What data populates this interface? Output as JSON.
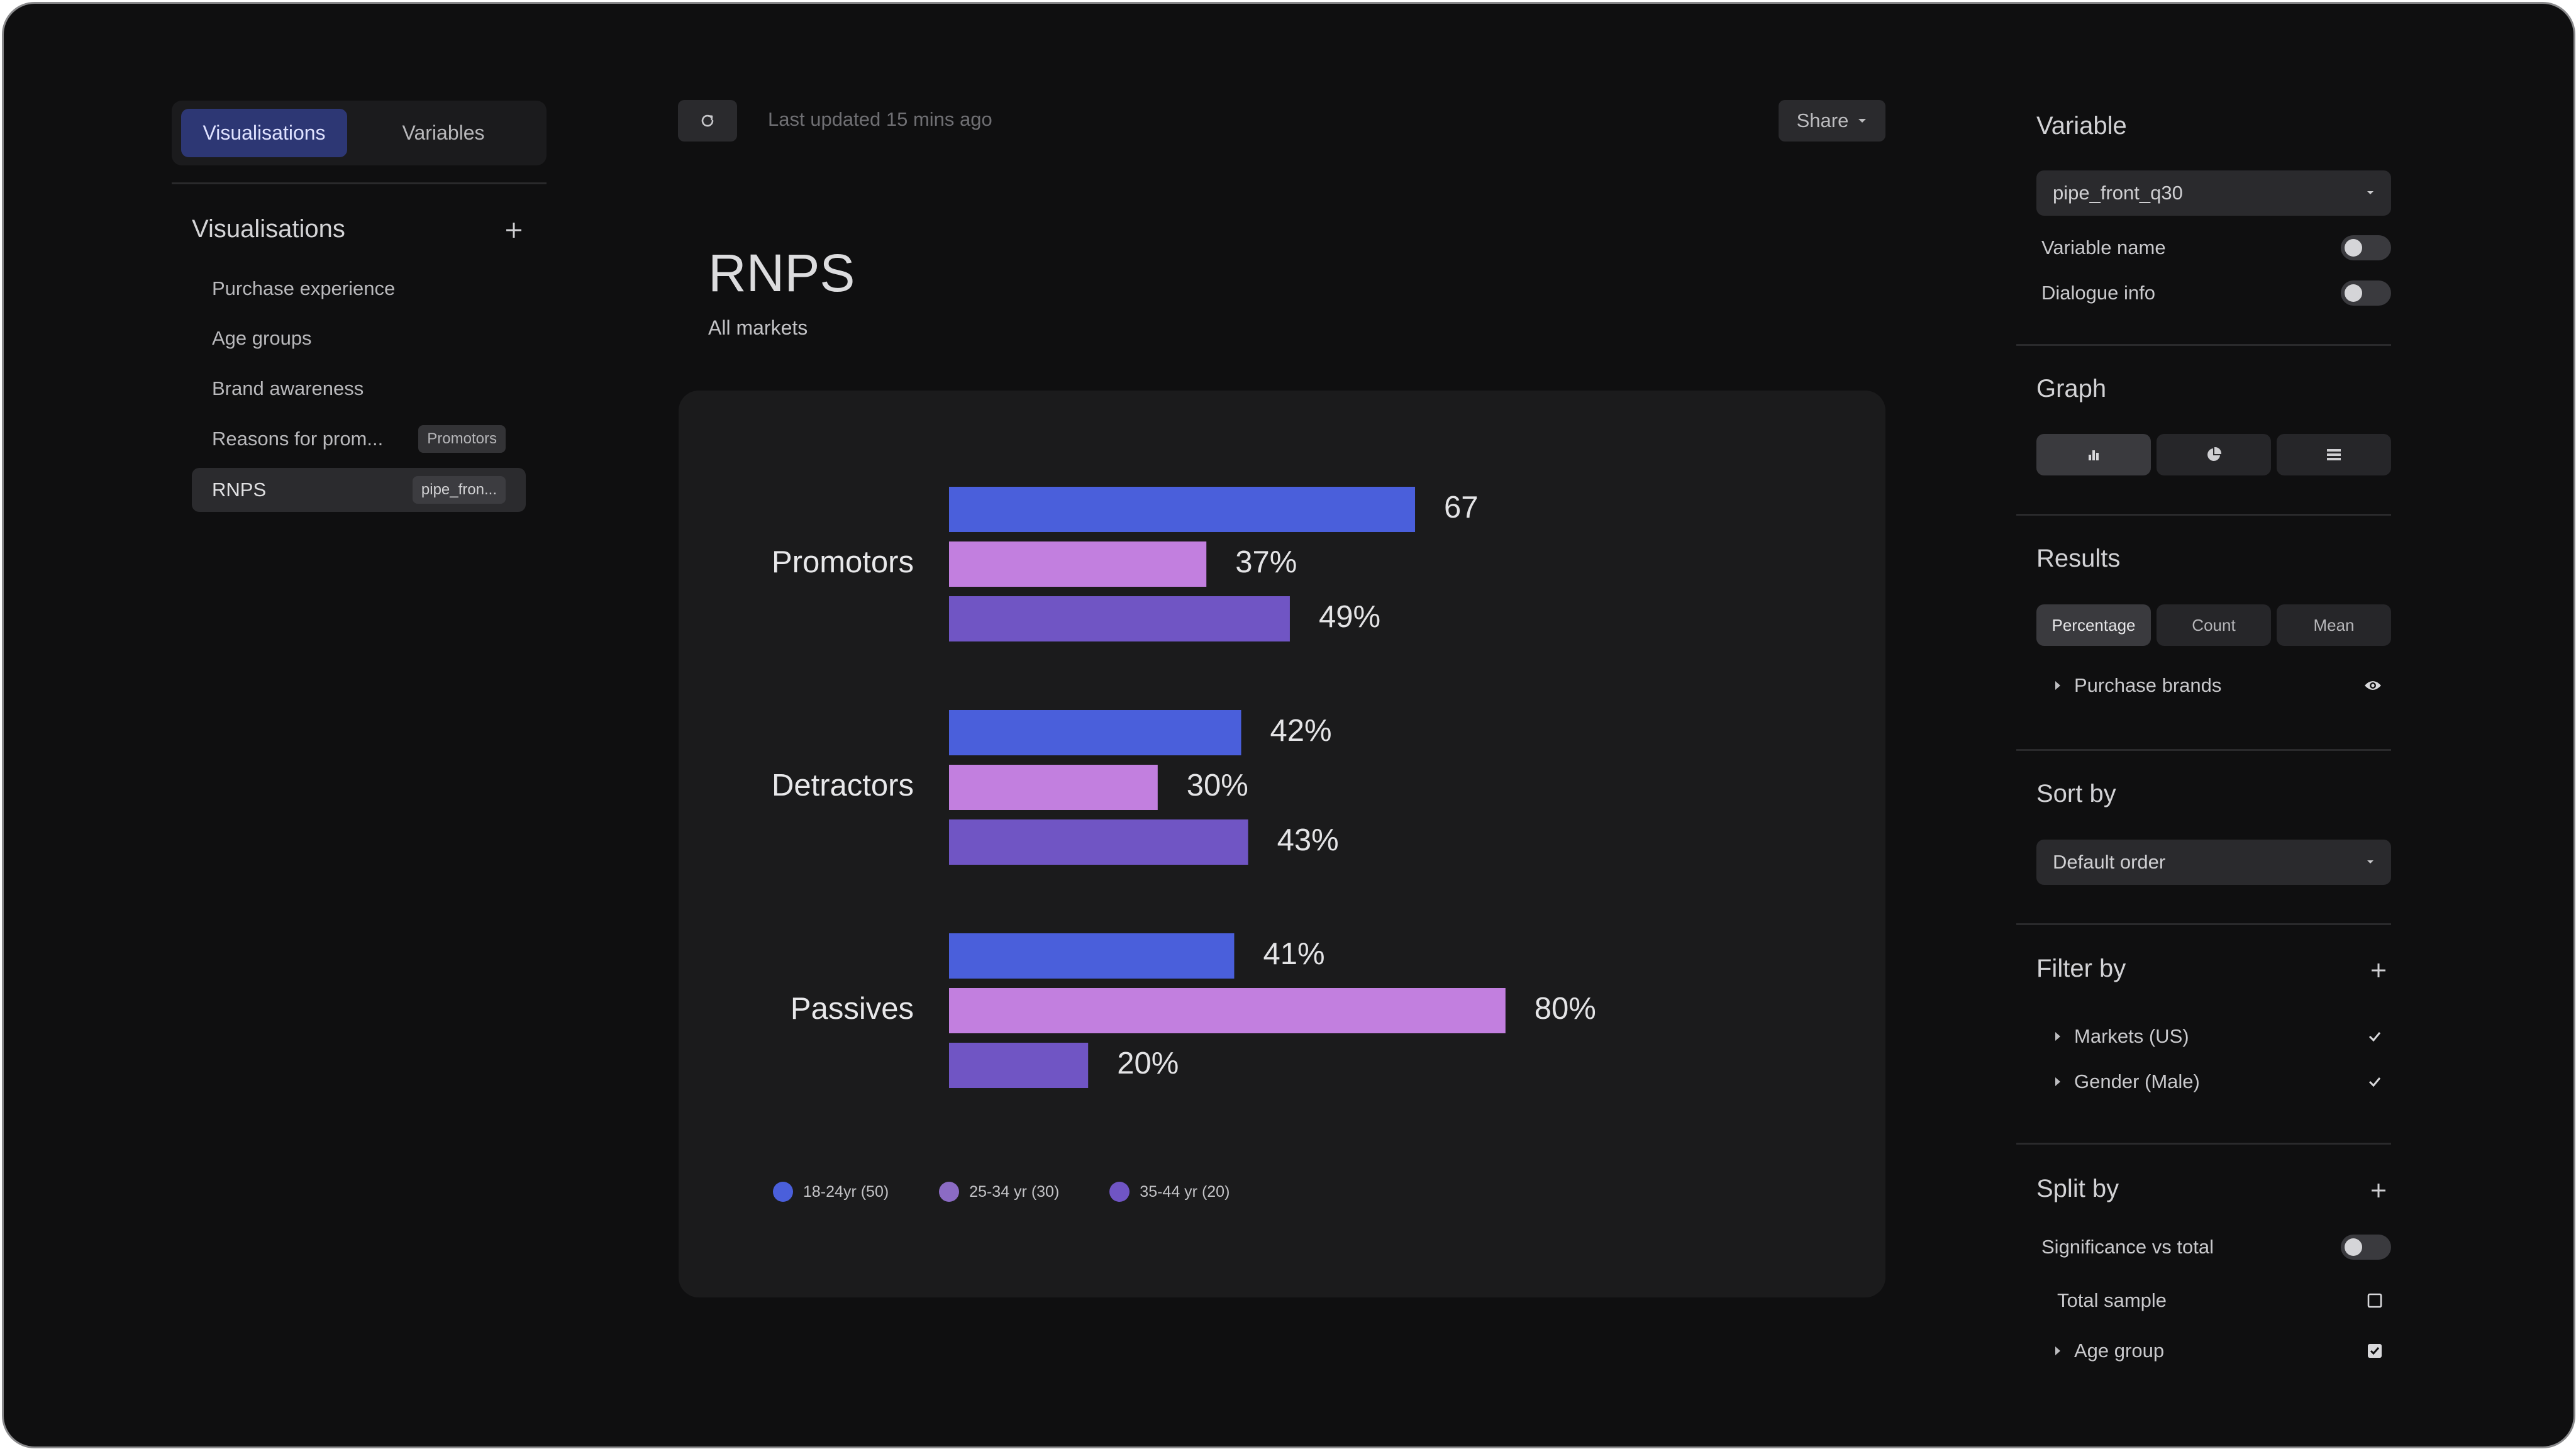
{
  "sidebar": {
    "tabs": [
      {
        "label": "Visualisations",
        "active": true
      },
      {
        "label": "Variables",
        "active": false
      }
    ],
    "section_title": "Visualisations",
    "items": [
      {
        "label": "Purchase experience",
        "tag": ""
      },
      {
        "label": "Age groups",
        "tag": ""
      },
      {
        "label": "Brand awareness",
        "tag": ""
      },
      {
        "label": "Reasons for prom...",
        "tag": "Promotors"
      },
      {
        "label": "RNPS",
        "tag": "pipe_fron...",
        "active": true
      }
    ]
  },
  "topbar": {
    "refresh_icon": "refresh-icon",
    "last_updated": "Last updated 15 mins ago",
    "share_label": "Share"
  },
  "header": {
    "title": "RNPS",
    "subtitle": "All markets"
  },
  "chart_data": {
    "type": "bar",
    "orientation": "horizontal",
    "categories": [
      "Promotors",
      "Detractors",
      "Passives"
    ],
    "series": [
      {
        "name": "18-24yr (50)",
        "color": "#4a5fdb",
        "values": [
          67,
          42,
          41
        ],
        "labels": [
          "67",
          "42%",
          "41%"
        ]
      },
      {
        "name": "25-34 yr (30)",
        "color": "#c27fdf",
        "values": [
          37,
          30,
          80
        ],
        "labels": [
          "37%",
          "30%",
          "80%"
        ]
      },
      {
        "name": "35-44 yr (20)",
        "color": "#7055c4",
        "values": [
          49,
          43,
          20
        ],
        "labels": [
          "49%",
          "43%",
          "20%"
        ]
      }
    ],
    "legend_dot_colors": [
      "#4a5fdb",
      "#8b6bc4",
      "#7055c4"
    ],
    "xlim": [
      0,
      100
    ],
    "legend_position": "bottom-left",
    "grid": false
  },
  "panel": {
    "variable": {
      "title": "Variable",
      "selected": "pipe_front_q30",
      "toggles": [
        {
          "label": "Variable name",
          "on": false
        },
        {
          "label": "Dialogue info",
          "on": false
        }
      ]
    },
    "graph": {
      "title": "Graph",
      "options": [
        {
          "icon": "bar-chart-icon",
          "active": true
        },
        {
          "icon": "pie-chart-icon",
          "active": false
        },
        {
          "icon": "table-icon",
          "active": false
        }
      ]
    },
    "results": {
      "title": "Results",
      "options": [
        {
          "label": "Percentage",
          "active": true
        },
        {
          "label": "Count",
          "active": false
        },
        {
          "label": "Mean",
          "active": false
        }
      ],
      "item": "Purchase brands",
      "item_icon": "eye-icon"
    },
    "sort": {
      "title": "Sort by",
      "selected": "Default order"
    },
    "filter": {
      "title": "Filter by",
      "items": [
        "Markets (US)",
        "Gender (Male)"
      ]
    },
    "split": {
      "title": "Split by",
      "toggle_label": "Significance vs total",
      "toggle_on": false,
      "items": [
        {
          "label": "Total sample",
          "checked": false,
          "expandable": false
        },
        {
          "label": "Age group",
          "checked": true,
          "expandable": true
        }
      ]
    }
  }
}
